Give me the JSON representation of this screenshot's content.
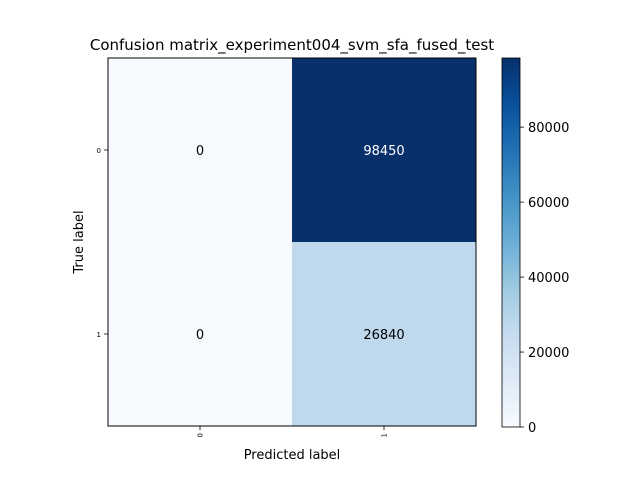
{
  "chart_data": {
    "type": "heatmap",
    "title": "Confusion matrix_experiment004_svm_sfa_fused_test",
    "xlabel": "Predicted label",
    "ylabel": "True label",
    "x_categories": [
      "0",
      "1"
    ],
    "y_categories": [
      "0",
      "1"
    ],
    "values": [
      [
        0,
        98450
      ],
      [
        0,
        26840
      ]
    ],
    "colorbar": {
      "cmap": "Blues",
      "range": [
        0,
        98450
      ],
      "ticks": [
        0,
        20000,
        40000,
        60000,
        80000
      ]
    }
  }
}
